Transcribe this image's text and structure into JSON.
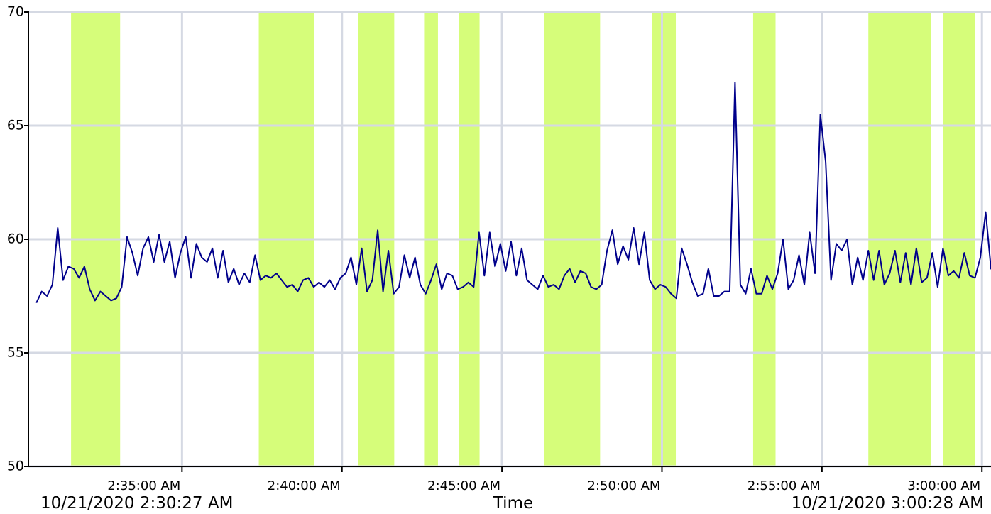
{
  "chart_data": {
    "type": "line",
    "x_label": "Time",
    "annotations": [
      "10/21/2020 2:30:27 AM",
      "10/21/2020 3:00:28 AM"
    ],
    "xlim": [
      "2:30:12 AM",
      "3:00:17 AM"
    ],
    "xticks": [
      "2:35:00 AM",
      "2:40:00 AM",
      "2:45:00 AM",
      "2:50:00 AM",
      "2:55:00 AM",
      "3:00:00 AM"
    ],
    "ylim": [
      50,
      70
    ],
    "yticks": [
      50,
      55,
      60,
      65,
      70
    ],
    "grid": true,
    "band_color": "#d6fd7a",
    "bands": [
      {
        "start": "2:31:32 AM",
        "end": "2:33:04 AM"
      },
      {
        "start": "2:37:24 AM",
        "end": "2:39:08 AM"
      },
      {
        "start": "2:40:30 AM",
        "end": "2:41:38 AM"
      },
      {
        "start": "2:42:34 AM",
        "end": "2:43:00 AM"
      },
      {
        "start": "2:43:39 AM",
        "end": "2:44:18 AM"
      },
      {
        "start": "2:46:19 AM",
        "end": "2:48:04 AM"
      },
      {
        "start": "2:49:42 AM",
        "end": "2:50:26 AM"
      },
      {
        "start": "2:52:51 AM",
        "end": "2:53:33 AM"
      },
      {
        "start": "2:56:27 AM",
        "end": "2:58:24 AM"
      },
      {
        "start": "2:58:47 AM",
        "end": "2:59:47 AM"
      }
    ],
    "x": [
      "2:30:27 AM",
      "2:30:37 AM",
      "2:30:47 AM",
      "2:30:57 AM",
      "2:31:07 AM",
      "2:31:17 AM",
      "2:31:27 AM",
      "2:31:37 AM",
      "2:31:47 AM",
      "2:31:57 AM",
      "2:32:07 AM",
      "2:32:17 AM",
      "2:32:27 AM",
      "2:32:37 AM",
      "2:32:47 AM",
      "2:32:57 AM",
      "2:33:07 AM",
      "2:33:17 AM",
      "2:33:27 AM",
      "2:33:37 AM",
      "2:33:47 AM",
      "2:33:57 AM",
      "2:34:07 AM",
      "2:34:17 AM",
      "2:34:27 AM",
      "2:34:37 AM",
      "2:34:47 AM",
      "2:34:57 AM",
      "2:35:07 AM",
      "2:35:17 AM",
      "2:35:27 AM",
      "2:35:37 AM",
      "2:35:47 AM",
      "2:35:57 AM",
      "2:36:07 AM",
      "2:36:17 AM",
      "2:36:27 AM",
      "2:36:37 AM",
      "2:36:47 AM",
      "2:36:57 AM",
      "2:37:07 AM",
      "2:37:17 AM",
      "2:37:27 AM",
      "2:37:37 AM",
      "2:37:47 AM",
      "2:37:57 AM",
      "2:38:07 AM",
      "2:38:17 AM",
      "2:38:27 AM",
      "2:38:37 AM",
      "2:38:47 AM",
      "2:38:57 AM",
      "2:39:07 AM",
      "2:39:17 AM",
      "2:39:27 AM",
      "2:39:37 AM",
      "2:39:47 AM",
      "2:39:57 AM",
      "2:40:07 AM",
      "2:40:17 AM",
      "2:40:27 AM",
      "2:40:37 AM",
      "2:40:47 AM",
      "2:40:57 AM",
      "2:41:07 AM",
      "2:41:17 AM",
      "2:41:27 AM",
      "2:41:37 AM",
      "2:41:47 AM",
      "2:41:57 AM",
      "2:42:07 AM",
      "2:42:17 AM",
      "2:42:27 AM",
      "2:42:37 AM",
      "2:42:47 AM",
      "2:42:57 AM",
      "2:43:07 AM",
      "2:43:17 AM",
      "2:43:27 AM",
      "2:43:37 AM",
      "2:43:47 AM",
      "2:43:57 AM",
      "2:44:07 AM",
      "2:44:17 AM",
      "2:44:27 AM",
      "2:44:37 AM",
      "2:44:47 AM",
      "2:44:57 AM",
      "2:45:07 AM",
      "2:45:17 AM",
      "2:45:27 AM",
      "2:45:37 AM",
      "2:45:47 AM",
      "2:45:57 AM",
      "2:46:07 AM",
      "2:46:17 AM",
      "2:46:27 AM",
      "2:46:37 AM",
      "2:46:47 AM",
      "2:46:57 AM",
      "2:47:07 AM",
      "2:47:17 AM",
      "2:47:27 AM",
      "2:47:37 AM",
      "2:47:47 AM",
      "2:47:57 AM",
      "2:48:07 AM",
      "2:48:17 AM",
      "2:48:27 AM",
      "2:48:37 AM",
      "2:48:47 AM",
      "2:48:57 AM",
      "2:49:07 AM",
      "2:49:17 AM",
      "2:49:27 AM",
      "2:49:37 AM",
      "2:49:47 AM",
      "2:49:57 AM",
      "2:50:07 AM",
      "2:50:17 AM",
      "2:50:27 AM",
      "2:50:37 AM",
      "2:50:47 AM",
      "2:50:57 AM",
      "2:51:07 AM",
      "2:51:17 AM",
      "2:51:27 AM",
      "2:51:37 AM",
      "2:51:47 AM",
      "2:51:57 AM",
      "2:52:07 AM",
      "2:52:17 AM",
      "2:52:27 AM",
      "2:52:37 AM",
      "2:52:47 AM",
      "2:52:57 AM",
      "2:53:07 AM",
      "2:53:17 AM",
      "2:53:27 AM",
      "2:53:37 AM",
      "2:53:47 AM",
      "2:53:57 AM",
      "2:54:07 AM",
      "2:54:17 AM",
      "2:54:27 AM",
      "2:54:37 AM",
      "2:54:47 AM",
      "2:54:57 AM",
      "2:55:07 AM",
      "2:55:17 AM",
      "2:55:27 AM",
      "2:55:37 AM",
      "2:55:47 AM",
      "2:55:57 AM",
      "2:56:07 AM",
      "2:56:17 AM",
      "2:56:27 AM",
      "2:56:37 AM",
      "2:56:47 AM",
      "2:56:57 AM",
      "2:57:07 AM",
      "2:57:17 AM",
      "2:57:27 AM",
      "2:57:37 AM",
      "2:57:47 AM",
      "2:57:57 AM",
      "2:58:07 AM",
      "2:58:17 AM",
      "2:58:27 AM",
      "2:58:37 AM",
      "2:58:47 AM",
      "2:58:57 AM",
      "2:59:07 AM",
      "2:59:17 AM",
      "2:59:27 AM",
      "2:59:37 AM",
      "2:59:47 AM",
      "2:59:57 AM",
      "3:00:07 AM",
      "3:00:17 AM",
      "3:00:27 AM"
    ],
    "series": [
      {
        "color": "#00008b",
        "values": [
          57.2,
          57.7,
          57.5,
          58.0,
          60.5,
          58.2,
          58.8,
          58.7,
          58.3,
          58.8,
          57.8,
          57.3,
          57.7,
          57.5,
          57.3,
          57.4,
          57.9,
          60.1,
          59.4,
          58.4,
          59.6,
          60.1,
          59.0,
          60.2,
          59.0,
          59.9,
          58.3,
          59.4,
          60.1,
          58.3,
          59.8,
          59.2,
          59.0,
          59.6,
          58.3,
          59.5,
          58.1,
          58.7,
          58.0,
          58.5,
          58.1,
          59.3,
          58.2,
          58.4,
          58.3,
          58.5,
          58.2,
          57.9,
          58.0,
          57.7,
          58.2,
          58.3,
          57.9,
          58.1,
          57.9,
          58.2,
          57.8,
          58.3,
          58.5,
          59.2,
          58.0,
          59.6,
          57.7,
          58.2,
          60.4,
          57.7,
          59.5,
          57.6,
          57.9,
          59.3,
          58.3,
          59.2,
          58.0,
          57.6,
          58.2,
          58.9,
          57.8,
          58.5,
          58.4,
          57.8,
          57.9,
          58.1,
          57.9,
          60.3,
          58.4,
          60.3,
          58.8,
          59.8,
          58.6,
          59.9,
          58.4,
          59.6,
          58.2,
          58.0,
          57.8,
          58.4,
          57.9,
          58.0,
          57.8,
          58.4,
          58.7,
          58.1,
          58.6,
          58.5,
          57.9,
          57.8,
          58.0,
          59.5,
          60.4,
          58.9,
          59.7,
          59.1,
          60.5,
          58.9,
          60.3,
          58.2,
          57.8,
          58.0,
          57.9,
          57.6,
          57.4,
          59.6,
          58.9,
          58.1,
          57.5,
          57.6,
          58.7,
          57.5,
          57.5,
          57.7,
          57.7,
          66.9,
          58.0,
          57.6,
          58.7,
          57.6,
          57.6,
          58.4,
          57.8,
          58.5,
          60.0,
          57.8,
          58.2,
          59.3,
          58.0,
          60.3,
          58.5,
          65.5,
          63.4,
          58.2,
          59.8,
          59.5,
          60.0,
          58.0,
          59.2,
          58.2,
          59.5,
          58.2,
          59.5,
          58.0,
          58.5,
          59.5,
          58.1,
          59.4,
          58.0,
          59.6,
          58.1,
          58.3,
          59.4,
          57.9,
          59.6,
          58.4,
          58.6,
          58.3,
          59.4,
          58.4,
          58.3,
          59.2,
          61.2,
          58.7,
          59.0
        ]
      }
    ]
  }
}
